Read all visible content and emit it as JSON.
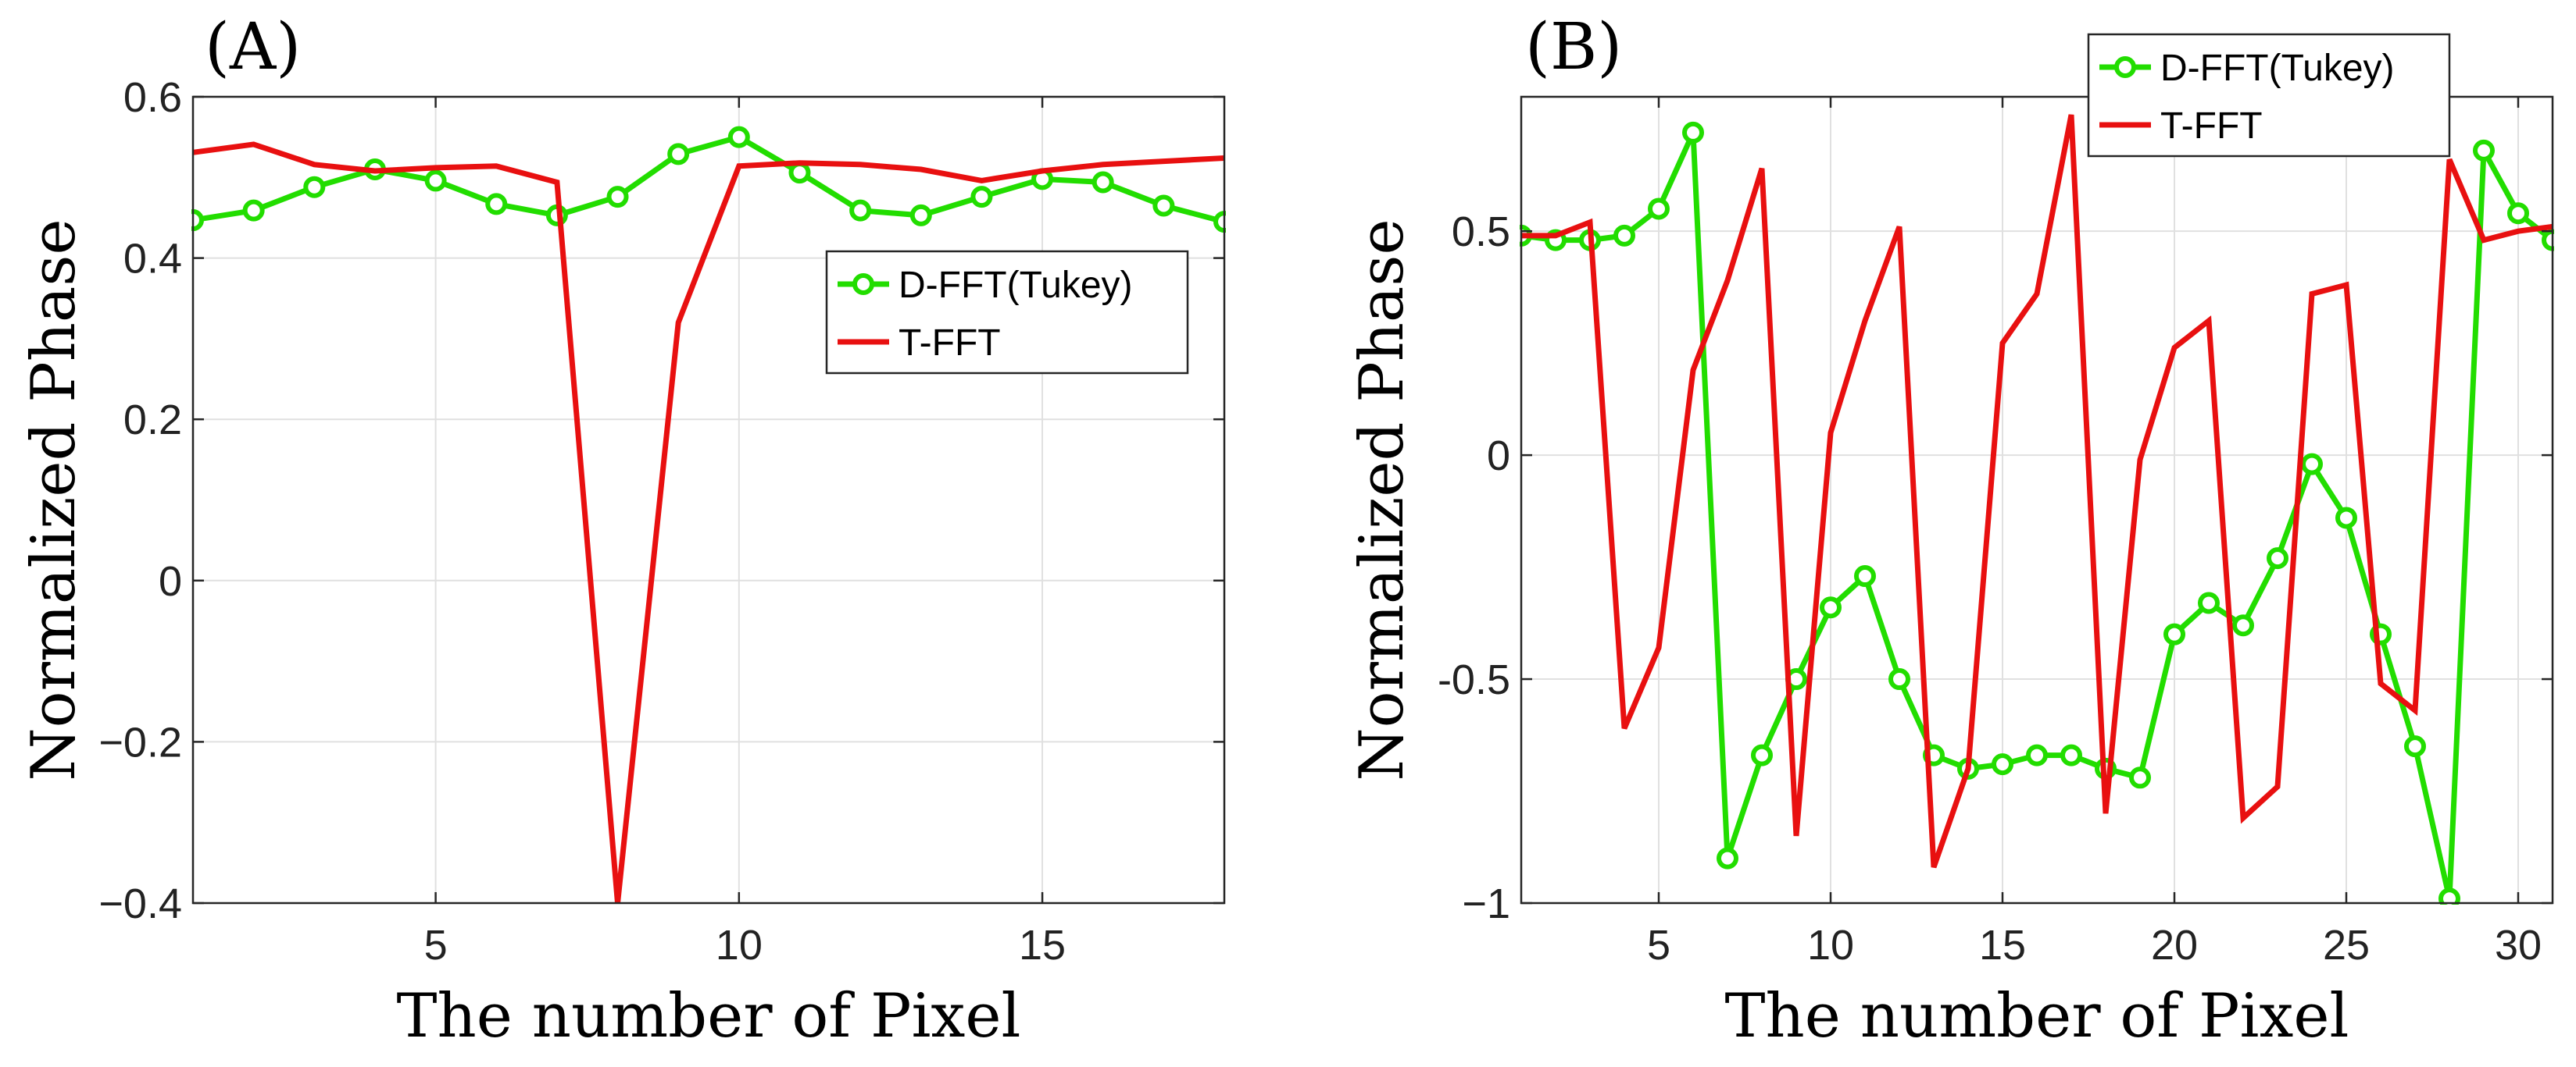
{
  "chart_data": [
    {
      "type": "line",
      "panel_label": "(A)",
      "xlabel": "The number of Pixel",
      "ylabel": "Normalized Phase",
      "xlim": [
        1,
        18
      ],
      "ylim": [
        -0.4,
        0.6
      ],
      "xticks": [
        5,
        10,
        15
      ],
      "xtick_labels": [
        "5",
        "10",
        "15"
      ],
      "yticks": [
        -0.4,
        -0.2,
        0,
        0.2,
        0.4,
        0.6
      ],
      "ytick_labels": [
        "−0.4",
        "−0.2",
        "0",
        "0.2",
        "0.4",
        "0.6"
      ],
      "grid": true,
      "legend_position": "right",
      "series": [
        {
          "name": "D-FFT(Tukey)",
          "color": "#22dd00",
          "marker": "circle",
          "x": [
            1,
            2,
            3,
            4,
            5,
            6,
            7,
            8,
            9,
            10,
            11,
            12,
            13,
            14,
            15,
            16,
            17,
            18
          ],
          "y": [
            0.447,
            0.459,
            0.488,
            0.51,
            0.496,
            0.467,
            0.453,
            0.476,
            0.529,
            0.55,
            0.506,
            0.459,
            0.453,
            0.476,
            0.498,
            0.494,
            0.465,
            0.445
          ]
        },
        {
          "name": "T-FFT",
          "color": "#e81010",
          "marker": "none",
          "x": [
            1,
            2,
            3,
            4,
            5,
            6,
            7,
            8,
            9,
            10,
            11,
            12,
            13,
            14,
            15,
            16,
            17,
            18
          ],
          "y": [
            0.531,
            0.541,
            0.516,
            0.508,
            0.512,
            0.514,
            0.494,
            -0.4,
            0.32,
            0.514,
            0.518,
            0.516,
            0.51,
            0.496,
            0.508,
            0.516,
            0.52,
            0.524
          ]
        }
      ]
    },
    {
      "type": "line",
      "panel_label": "(B)",
      "xlabel": "The number of Pixel",
      "ylabel": "Normalized Phase",
      "xlim": [
        1,
        31
      ],
      "ylim": [
        -1,
        0.8
      ],
      "xticks": [
        5,
        10,
        15,
        20,
        25,
        30
      ],
      "xtick_labels": [
        "5",
        "10",
        "15",
        "20",
        "25",
        "30"
      ],
      "yticks": [
        -1,
        -0.5,
        0,
        0.5
      ],
      "ytick_labels": [
        "−1",
        "-0.5",
        "0",
        "0.5"
      ],
      "grid": true,
      "legend_position": "top-center",
      "series": [
        {
          "name": "D-FFT(Tukey)",
          "color": "#22dd00",
          "marker": "circle",
          "x": [
            1,
            2,
            3,
            4,
            5,
            6,
            7,
            8,
            9,
            10,
            11,
            12,
            13,
            14,
            15,
            16,
            17,
            18,
            19,
            20,
            21,
            22,
            23,
            24,
            25,
            26,
            27,
            28,
            29,
            30,
            31
          ],
          "y": [
            0.49,
            0.48,
            0.48,
            0.49,
            0.55,
            0.72,
            -0.9,
            -0.67,
            -0.5,
            -0.34,
            -0.27,
            -0.5,
            -0.67,
            -0.7,
            -0.69,
            -0.67,
            -0.67,
            -0.7,
            -0.72,
            -0.4,
            -0.33,
            -0.38,
            -0.23,
            -0.02,
            -0.14,
            -0.4,
            -0.65,
            -0.99,
            0.68,
            0.54,
            0.48
          ]
        },
        {
          "name": "T-FFT",
          "color": "#e81010",
          "marker": "none",
          "x": [
            1,
            2,
            3,
            4,
            5,
            6,
            7,
            8,
            9,
            10,
            11,
            12,
            13,
            14,
            15,
            16,
            17,
            18,
            19,
            20,
            21,
            22,
            23,
            24,
            25,
            26,
            27,
            28,
            29,
            30,
            31
          ],
          "y": [
            0.49,
            0.49,
            0.52,
            -0.61,
            -0.43,
            0.19,
            0.39,
            0.64,
            -0.85,
            0.05,
            0.3,
            0.51,
            -0.92,
            -0.7,
            0.25,
            0.36,
            0.76,
            -0.8,
            -0.01,
            0.24,
            0.3,
            -0.81,
            -0.74,
            0.36,
            0.38,
            -0.51,
            -0.57,
            0.66,
            0.48,
            0.5,
            0.51
          ]
        }
      ]
    }
  ]
}
